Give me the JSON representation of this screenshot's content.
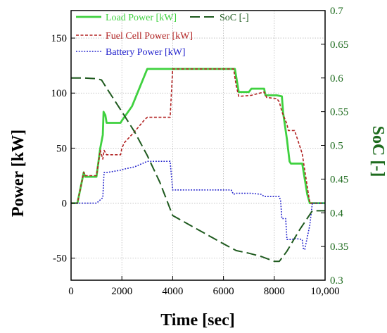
{
  "chart_data": {
    "type": "line",
    "xlabel": "Time [sec]",
    "ylabel_left": "Power [kW]",
    "ylabel_right": "SoC [-]",
    "xlim": [
      0,
      10000
    ],
    "ylim_left": [
      -70,
      175
    ],
    "ylim_right": [
      0.3,
      0.7
    ],
    "x_ticks": [
      0,
      2000,
      4000,
      6000,
      8000,
      10000
    ],
    "x_tick_labels": [
      "0",
      "2000",
      "4000",
      "6000",
      "8000",
      "10,000"
    ],
    "y_ticks_left": [
      -50,
      0,
      50,
      100,
      150
    ],
    "y_tick_labels_left": [
      "-50",
      "0",
      "50",
      "100",
      "150"
    ],
    "y_ticks_right": [
      0.3,
      0.35,
      0.4,
      0.45,
      0.5,
      0.55,
      0.6,
      0.65,
      0.7
    ],
    "y_tick_labels_right": [
      "0.3",
      "0.35",
      "0.4",
      "0.45",
      "0.5",
      "0.55",
      "0.6",
      "0.65",
      "0.7"
    ],
    "grid": true,
    "legend_position": "top",
    "colors": {
      "load": "#3fd13f",
      "fuel_cell": "#b22222",
      "battery": "#1f1fcc",
      "soc": "#1e5a1e",
      "right_axis": "#1e6b1e",
      "grid": "#bbbbbb"
    },
    "series": [
      {
        "name": "Load Power [kW]",
        "axis": "left",
        "style": "solid",
        "x": [
          0,
          250,
          500,
          550,
          1000,
          1150,
          1250,
          1280,
          1300,
          1350,
          1400,
          1950,
          2000,
          2400,
          3000,
          6450,
          6600,
          7000,
          7100,
          7600,
          7650,
          8100,
          8300,
          8350,
          8500,
          8600,
          8650,
          8750,
          9100,
          9300,
          9400,
          10000
        ],
        "y": [
          0,
          0,
          28,
          24,
          24,
          50,
          62,
          83,
          82,
          80,
          73,
          73,
          75,
          88,
          122,
          122,
          101,
          101,
          104,
          104,
          98,
          98,
          97,
          82,
          58,
          38,
          36,
          36,
          36,
          8,
          0,
          0
        ]
      },
      {
        "name": "Fuel Cell Power [kW]",
        "axis": "left",
        "style": "dashed",
        "x": [
          0,
          250,
          500,
          550,
          1000,
          1150,
          1250,
          1300,
          1400,
          1450,
          1950,
          2000,
          2100,
          2500,
          2900,
          3000,
          3900,
          4000,
          6400,
          6500,
          6600,
          7100,
          7600,
          7700,
          8100,
          8200,
          8300,
          8500,
          8550,
          8800,
          9100,
          9400,
          9500,
          10000
        ],
        "y": [
          0,
          0,
          28,
          25,
          25,
          48,
          40,
          48,
          44,
          44,
          44,
          50,
          55,
          65,
          76,
          78,
          78,
          122,
          122,
          107,
          97,
          98,
          101,
          96,
          95,
          92,
          83,
          72,
          66,
          66,
          45,
          0,
          0,
          0
        ]
      },
      {
        "name": "Battery Power [kW]",
        "axis": "left",
        "style": "dotted",
        "x": [
          0,
          1000,
          1150,
          1250,
          1300,
          1450,
          1950,
          2100,
          2500,
          3000,
          3900,
          4000,
          6300,
          6400,
          6500,
          7100,
          7500,
          7600,
          8200,
          8250,
          8300,
          8450,
          8500,
          8700,
          8800,
          9100,
          9150,
          9200,
          9400,
          9500,
          10000
        ],
        "y": [
          0,
          0,
          3,
          5,
          28,
          28,
          30,
          31,
          33,
          38,
          38,
          12,
          12,
          8,
          9,
          9,
          8,
          6,
          6,
          2,
          -14,
          -14,
          -33,
          -33,
          -32,
          -33,
          -42,
          -42,
          -20,
          0,
          0
        ]
      },
      {
        "name": "SoC [-]",
        "axis": "right",
        "style": "dashdash",
        "x": [
          0,
          500,
          1000,
          1200,
          1400,
          2000,
          2500,
          3000,
          3500,
          4000,
          5000,
          6000,
          6500,
          7000,
          7500,
          8000,
          8200,
          8500,
          9000,
          9500,
          10000
        ],
        "y": [
          0.6,
          0.6,
          0.599,
          0.597,
          0.585,
          0.55,
          0.52,
          0.485,
          0.445,
          0.396,
          0.375,
          0.354,
          0.344,
          0.34,
          0.335,
          0.328,
          0.328,
          0.343,
          0.375,
          0.403,
          0.403
        ]
      }
    ]
  }
}
